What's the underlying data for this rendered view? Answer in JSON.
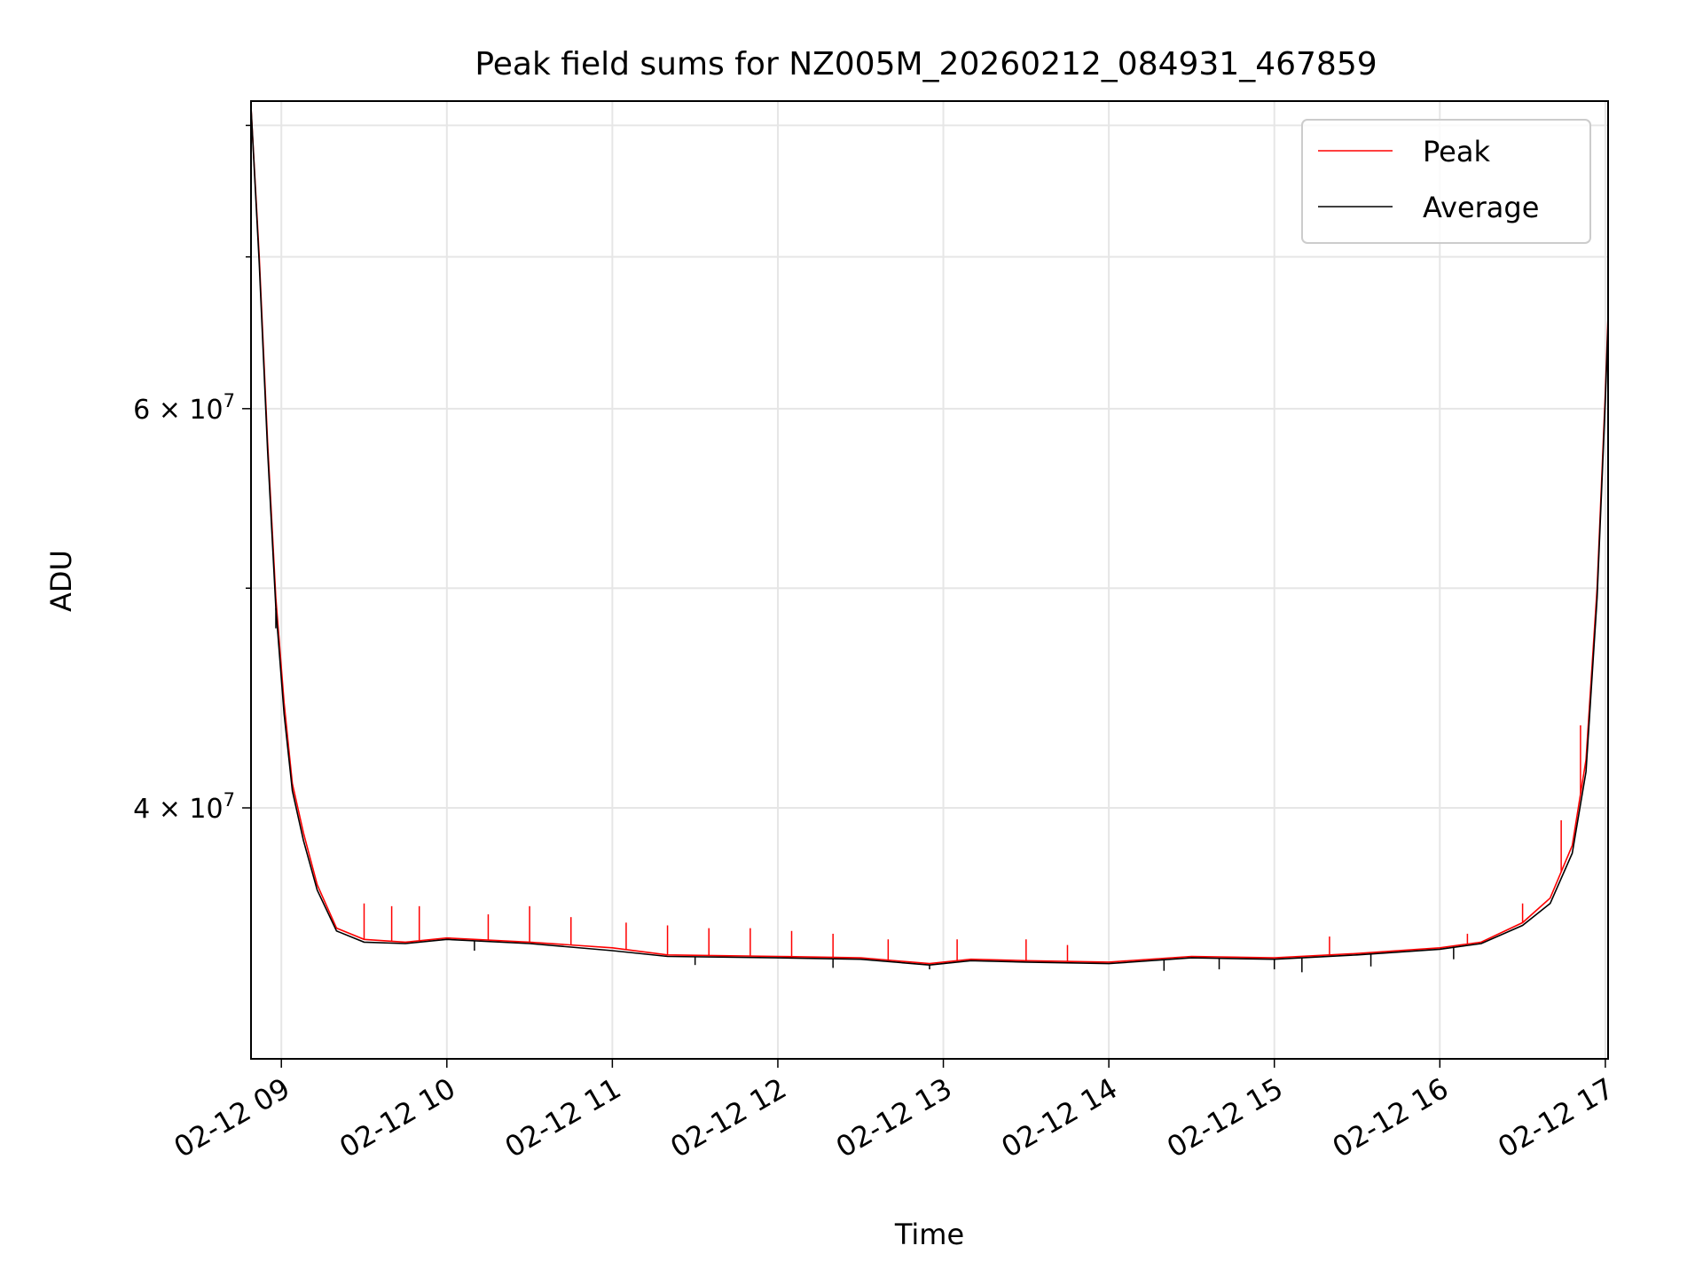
{
  "chart_data": {
    "type": "line",
    "title": "Peak field sums for NZ005M_20260212_084931_467859",
    "xlabel": "Time",
    "ylabel": "ADU",
    "y_scale": "log",
    "x_range": [
      "2026-02-12 08:49",
      "2026-02-12 17:01"
    ],
    "ylim": [
      31000000,
      82000000
    ],
    "x_ticks": [
      {
        "time": "2026-02-12 09:00",
        "label": "02-12 09"
      },
      {
        "time": "2026-02-12 10:00",
        "label": "02-12 10"
      },
      {
        "time": "2026-02-12 11:00",
        "label": "02-12 11"
      },
      {
        "time": "2026-02-12 12:00",
        "label": "02-12 12"
      },
      {
        "time": "2026-02-12 13:00",
        "label": "02-12 13"
      },
      {
        "time": "2026-02-12 14:00",
        "label": "02-12 14"
      },
      {
        "time": "2026-02-12 15:00",
        "label": "02-12 15"
      },
      {
        "time": "2026-02-12 16:00",
        "label": "02-12 16"
      },
      {
        "time": "2026-02-12 17:00",
        "label": "02-12 17"
      }
    ],
    "y_major_ticks": [
      {
        "value": 40000000,
        "mantissa": "4",
        "base": "10",
        "exp": "7"
      },
      {
        "value": 60000000,
        "mantissa": "6",
        "base": "10",
        "exp": "7"
      }
    ],
    "y_minor_ticks": [
      50000000,
      70000000,
      80000000
    ],
    "grid": true,
    "legend_position": "top-right",
    "series": [
      {
        "name": "Peak",
        "color": "#ff0000",
        "points": [
          [
            "2026-02-12 08:49",
            81500000
          ],
          [
            "2026-02-12 08:52",
            70000000
          ],
          [
            "2026-02-12 08:55",
            58000000
          ],
          [
            "2026-02-12 08:58",
            49500000
          ],
          [
            "2026-02-12 09:01",
            44500000
          ],
          [
            "2026-02-12 09:04",
            41000000
          ],
          [
            "2026-02-12 09:08",
            39000000
          ],
          [
            "2026-02-12 09:13",
            37000000
          ],
          [
            "2026-02-12 09:20",
            35400000
          ],
          [
            "2026-02-12 09:30",
            35000000
          ],
          [
            "2026-02-12 09:45",
            34900000
          ],
          [
            "2026-02-12 10:00",
            35050000
          ],
          [
            "2026-02-12 10:30",
            34900000
          ],
          [
            "2026-02-12 11:00",
            34700000
          ],
          [
            "2026-02-12 11:20",
            34450000
          ],
          [
            "2026-02-12 12:00",
            34400000
          ],
          [
            "2026-02-12 12:30",
            34350000
          ],
          [
            "2026-02-12 12:55",
            34150000
          ],
          [
            "2026-02-12 13:10",
            34300000
          ],
          [
            "2026-02-12 13:30",
            34250000
          ],
          [
            "2026-02-12 14:00",
            34200000
          ],
          [
            "2026-02-12 14:30",
            34400000
          ],
          [
            "2026-02-12 15:00",
            34350000
          ],
          [
            "2026-02-12 15:30",
            34500000
          ],
          [
            "2026-02-12 16:00",
            34700000
          ],
          [
            "2026-02-12 16:15",
            34900000
          ],
          [
            "2026-02-12 16:30",
            35600000
          ],
          [
            "2026-02-12 16:40",
            36500000
          ],
          [
            "2026-02-12 16:48",
            38500000
          ],
          [
            "2026-02-12 16:53",
            42000000
          ],
          [
            "2026-02-12 16:57",
            50000000
          ],
          [
            "2026-02-12 17:00",
            61000000
          ],
          [
            "2026-02-12 17:01",
            66000000
          ]
        ],
        "spikes": [
          [
            "2026-02-12 09:30",
            36300000
          ],
          [
            "2026-02-12 09:40",
            36200000
          ],
          [
            "2026-02-12 09:50",
            36200000
          ],
          [
            "2026-02-12 10:15",
            35900000
          ],
          [
            "2026-02-12 10:30",
            36200000
          ],
          [
            "2026-02-12 10:45",
            35800000
          ],
          [
            "2026-02-12 11:05",
            35600000
          ],
          [
            "2026-02-12 11:20",
            35500000
          ],
          [
            "2026-02-12 11:35",
            35400000
          ],
          [
            "2026-02-12 11:50",
            35400000
          ],
          [
            "2026-02-12 12:05",
            35300000
          ],
          [
            "2026-02-12 12:20",
            35200000
          ],
          [
            "2026-02-12 12:40",
            35000000
          ],
          [
            "2026-02-12 13:05",
            35000000
          ],
          [
            "2026-02-12 13:30",
            35000000
          ],
          [
            "2026-02-12 13:45",
            34800000
          ],
          [
            "2026-02-12 15:20",
            35100000
          ],
          [
            "2026-02-12 16:10",
            35200000
          ],
          [
            "2026-02-12 16:30",
            36300000
          ],
          [
            "2026-02-12 16:44",
            39500000
          ],
          [
            "2026-02-12 16:51",
            43500000
          ]
        ]
      },
      {
        "name": "Average",
        "color": "#000000",
        "points": [
          [
            "2026-02-12 08:49",
            81500000
          ],
          [
            "2026-02-12 08:52",
            69500000
          ],
          [
            "2026-02-12 08:55",
            57500000
          ],
          [
            "2026-02-12 08:58",
            49000000
          ],
          [
            "2026-02-12 09:01",
            44000000
          ],
          [
            "2026-02-12 09:04",
            40700000
          ],
          [
            "2026-02-12 09:08",
            38700000
          ],
          [
            "2026-02-12 09:13",
            36800000
          ],
          [
            "2026-02-12 09:20",
            35300000
          ],
          [
            "2026-02-12 09:30",
            34900000
          ],
          [
            "2026-02-12 09:45",
            34850000
          ],
          [
            "2026-02-12 10:00",
            35000000
          ],
          [
            "2026-02-12 10:30",
            34850000
          ],
          [
            "2026-02-12 11:00",
            34600000
          ],
          [
            "2026-02-12 11:20",
            34400000
          ],
          [
            "2026-02-12 12:00",
            34350000
          ],
          [
            "2026-02-12 12:30",
            34300000
          ],
          [
            "2026-02-12 12:55",
            34100000
          ],
          [
            "2026-02-12 13:10",
            34250000
          ],
          [
            "2026-02-12 13:30",
            34200000
          ],
          [
            "2026-02-12 14:00",
            34150000
          ],
          [
            "2026-02-12 14:30",
            34350000
          ],
          [
            "2026-02-12 15:00",
            34300000
          ],
          [
            "2026-02-12 15:30",
            34450000
          ],
          [
            "2026-02-12 16:00",
            34650000
          ],
          [
            "2026-02-12 16:15",
            34850000
          ],
          [
            "2026-02-12 16:30",
            35500000
          ],
          [
            "2026-02-12 16:40",
            36300000
          ],
          [
            "2026-02-12 16:48",
            38200000
          ],
          [
            "2026-02-12 16:53",
            41500000
          ],
          [
            "2026-02-12 16:57",
            49500000
          ],
          [
            "2026-02-12 17:00",
            60500000
          ],
          [
            "2026-02-12 17:01",
            65500000
          ]
        ],
        "dips": [
          [
            "2026-02-12 08:58",
            48000000
          ],
          [
            "2026-02-12 10:10",
            34600000
          ],
          [
            "2026-02-12 11:30",
            34100000
          ],
          [
            "2026-02-12 12:20",
            34000000
          ],
          [
            "2026-02-12 12:55",
            33950000
          ],
          [
            "2026-02-12 14:20",
            33900000
          ],
          [
            "2026-02-12 14:40",
            33950000
          ],
          [
            "2026-02-12 15:00",
            33950000
          ],
          [
            "2026-02-12 15:10",
            33850000
          ],
          [
            "2026-02-12 15:35",
            34050000
          ],
          [
            "2026-02-12 16:05",
            34300000
          ]
        ]
      }
    ]
  }
}
